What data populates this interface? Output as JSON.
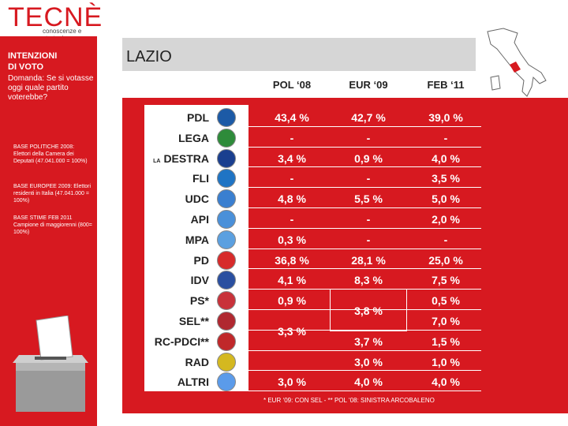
{
  "header": {
    "logo_text": "TECNÈ",
    "logo_sub": "conoscenze e strategie"
  },
  "sidebar": {
    "title_line1": "INTENZIONI",
    "title_line2": "DI VOTO",
    "question": "Domanda: Se si votasse oggi quale partito voterebbe?",
    "note1": "BASE POLITICHE 2008: Elettori della Camera dei Deputati (47.041.000 = 100%)",
    "note2": "BASE EUROPEE 2009: Elettori residenti in Italia (47.041.000 = 100%)",
    "note3": "BASE STIME FEB 2011 Campione di maggiorenni (800= 100%)"
  },
  "title": "LAZIO",
  "columns": [
    "POL ‘08",
    "EUR ‘09",
    "FEB ‘11"
  ],
  "rows": [
    {
      "party": "PDL",
      "prefix": "",
      "pol": "43,4 %",
      "eur": "42,7 %",
      "feb": "39,0 %",
      "color": "#1c5aa6"
    },
    {
      "party": "LEGA",
      "prefix": "",
      "pol": "-",
      "eur": "-",
      "feb": "-",
      "color": "#2e8b3a"
    },
    {
      "party": "DESTRA",
      "prefix": "LA",
      "pol": "3,4 %",
      "eur": "0,9 %",
      "feb": "4,0 %",
      "color": "#1a3f8f"
    },
    {
      "party": "FLI",
      "prefix": "",
      "pol": "-",
      "eur": "-",
      "feb": "3,5 %",
      "color": "#1f74c4"
    },
    {
      "party": "UDC",
      "prefix": "",
      "pol": "4,8 %",
      "eur": "5,5 %",
      "feb": "5,0 %",
      "color": "#3a7fd0"
    },
    {
      "party": "API",
      "prefix": "",
      "pol": "-",
      "eur": "-",
      "feb": "2,0 %",
      "color": "#4a90d9"
    },
    {
      "party": "MPA",
      "prefix": "",
      "pol": "0,3 %",
      "eur": "-",
      "feb": "-",
      "color": "#5ba0e0"
    },
    {
      "party": "PD",
      "prefix": "",
      "pol": "36,8 %",
      "eur": "28,1 %",
      "feb": "25,0 %",
      "color": "#d72b2b"
    },
    {
      "party": "IDV",
      "prefix": "",
      "pol": "4,1 %",
      "eur": "8,3 %",
      "feb": "7,5 %",
      "color": "#2a4fa0"
    },
    {
      "party": "PS*",
      "prefix": "",
      "pol": "0,9 %",
      "eur": "",
      "feb": "0,5 %",
      "color": "#c8323a"
    },
    {
      "party": "SEL**",
      "prefix": "",
      "pol": "",
      "eur": "",
      "feb": "7,0 %",
      "color": "#b02830"
    },
    {
      "party": "RC-PDCI**",
      "prefix": "",
      "pol": "",
      "eur": "3,7 %",
      "feb": "1,5 %",
      "color": "#c0282a"
    },
    {
      "party": "RAD",
      "prefix": "",
      "pol": "",
      "eur": "3,0 %",
      "feb": "1,0 %",
      "color": "#d4b820"
    },
    {
      "party": "ALTRI",
      "prefix": "",
      "pol": "3,0 %",
      "eur": "4,0 %",
      "feb": "4,0 %",
      "color": "#5b9bea"
    }
  ],
  "merged": {
    "eur_ps_sel": "3,8 %",
    "pol_sel_rc": "3,3 %"
  },
  "footnote": "* EUR ‘09: CON SEL - ** POL ‘08: SINISTRA ARCOBALENO",
  "colors": {
    "brand_red": "#d71920",
    "title_bar": "#d6d6d6"
  }
}
